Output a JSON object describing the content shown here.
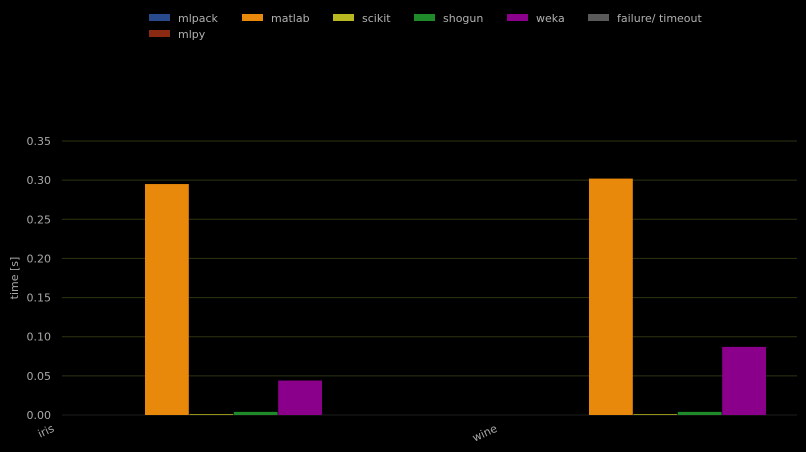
{
  "chart_data": {
    "type": "bar",
    "title": "",
    "xlabel": "",
    "ylabel": "time [s]",
    "ylim": [
      0,
      0.35
    ],
    "yticks": [
      "0.00",
      "0.05",
      "0.10",
      "0.15",
      "0.20",
      "0.25",
      "0.30",
      "0.35"
    ],
    "categories": [
      "iris",
      "wine"
    ],
    "grid": true,
    "legend_position": "top",
    "series": [
      {
        "name": "mlpack",
        "color": "#2a4a8e",
        "values": [
          0,
          0
        ]
      },
      {
        "name": "matlab",
        "color": "#e8890c",
        "values": [
          0.295,
          0.302
        ]
      },
      {
        "name": "scikit",
        "color": "#b9b820",
        "values": [
          0.001,
          0.001
        ]
      },
      {
        "name": "shogun",
        "color": "#1f8a2a",
        "values": [
          0.004,
          0.004
        ]
      },
      {
        "name": "weka",
        "color": "#8b008b",
        "values": [
          0.044,
          0.087
        ]
      },
      {
        "name": "failure/ timeout",
        "color": "#5a5a5a",
        "values": [
          0,
          0
        ]
      },
      {
        "name": "mlpy",
        "color": "#8b2a12",
        "values": [
          0,
          0
        ]
      }
    ]
  }
}
